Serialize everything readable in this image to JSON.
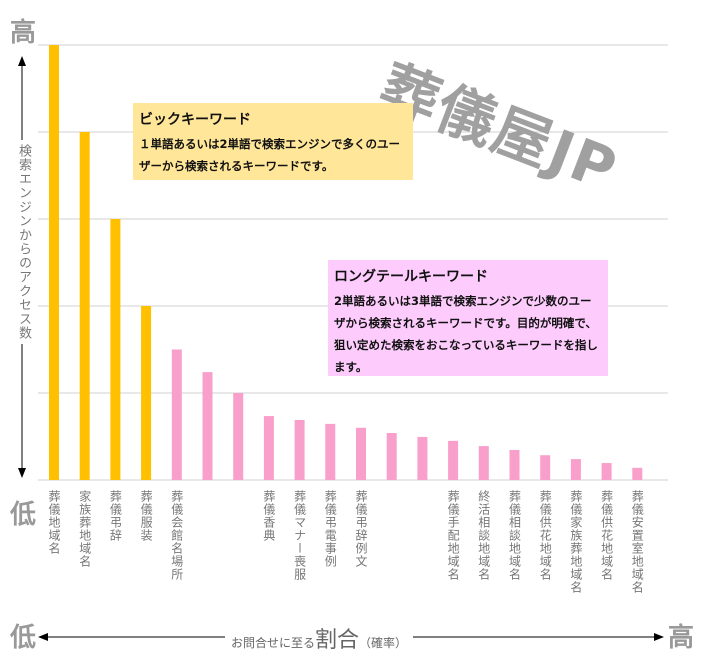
{
  "watermark": "葬儀屋JP",
  "chart_data": {
    "type": "bar",
    "title": "",
    "xlabel": "お問合せに至る割合（確率）",
    "ylabel": "検索エンジンからのアクセス数",
    "ylim": [
      0,
      100
    ],
    "grid": true,
    "categories": [
      "葬儀地域名",
      "家族葬地域名",
      "葬儀弔辞",
      "葬儀服装",
      "葬儀会館名場所",
      "",
      "",
      "葬儀香典",
      "葬儀マナー喪服",
      "葬儀弔電事例",
      "葬儀弔辞例文",
      "",
      "",
      "葬儀手配地域名",
      "終活相談地域名",
      "葬儀相談地域名",
      "葬儀供花地域名",
      "葬儀家族葬地域名",
      "葬儀供花地域名",
      "葬儀安置室地域名"
    ],
    "values": [
      100,
      80,
      60,
      40,
      30,
      24.8,
      20,
      14.7,
      13.8,
      12.9,
      12,
      10.8,
      9.9,
      9,
      7.8,
      6.9,
      5.7,
      4.8,
      3.9,
      2.8
    ],
    "groups": [
      "big",
      "big",
      "big",
      "big",
      "long",
      "long",
      "long",
      "long",
      "long",
      "long",
      "long",
      "long",
      "long",
      "long",
      "long",
      "long",
      "long",
      "long",
      "long",
      "long"
    ],
    "colors": {
      "big": "#ffc000",
      "long": "#f99fcb"
    },
    "axis_ends": {
      "y_high": "高",
      "y_low": "低",
      "x_low": "低",
      "x_high": "高"
    },
    "xlabel_parts": {
      "pre": "お問合せに至る",
      "em": "割合",
      "post": "（確率）"
    },
    "annotations": [
      {
        "title": "ビックキーワード",
        "body": "１単語あるいは2単語で検索エンジンで多くのユーザーから検索されるキーワードです。",
        "color": "#ffe699"
      },
      {
        "title": "ロングテールキーワード",
        "body": "2単語あるいは3単語で検索エンジンで少数のユーザから検索されるキーワードです。目的が明確で、狙い定めた検索をおこなっているキーワードを指します。",
        "color": "#fdccfd"
      }
    ]
  }
}
